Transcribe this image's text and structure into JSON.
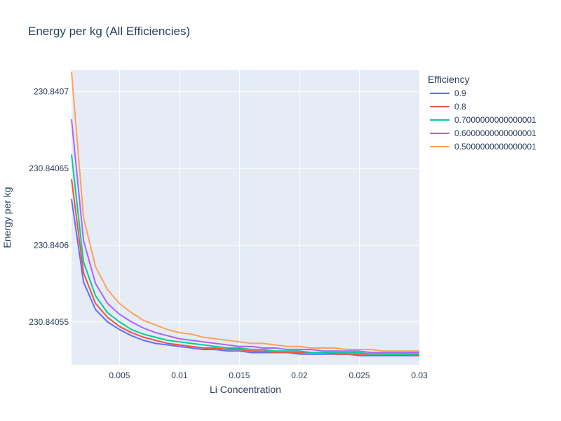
{
  "chart_data": {
    "type": "line",
    "title": "Energy per kg (All Efficiencies)",
    "xlabel": "Li Concentration",
    "ylabel": "Energy per kg",
    "xlim": [
      0.001,
      0.03
    ],
    "ylim": [
      230.840522,
      230.840714
    ],
    "x_ticks": [
      0.005,
      0.01,
      0.015,
      0.02,
      0.025,
      0.03
    ],
    "x_tick_labels": [
      "0.005",
      "0.01",
      "0.015",
      "0.02",
      "0.025",
      "0.03"
    ],
    "y_ticks": [
      230.84055,
      230.8406,
      230.84065,
      230.8407
    ],
    "y_tick_labels": [
      "230.84055",
      "230.8406",
      "230.84065",
      "230.8407"
    ],
    "grid": true,
    "plot_bg": "#E5ECF6",
    "legend_title": "Efficiency",
    "legend_position": "right",
    "x": [
      0.001,
      0.002,
      0.003,
      0.004,
      0.005,
      0.006,
      0.007,
      0.008,
      0.009,
      0.01,
      0.011,
      0.012,
      0.013,
      0.014,
      0.015,
      0.016,
      0.017,
      0.018,
      0.019,
      0.02,
      0.021,
      0.022,
      0.023,
      0.024,
      0.025,
      0.026,
      0.027,
      0.028,
      0.029,
      0.03
    ],
    "series": [
      {
        "name": "0.9",
        "color": "#636EFA",
        "values": [
          230.84063,
          230.840576,
          230.840558,
          230.84055,
          230.840545,
          230.840541,
          230.840538,
          230.840536,
          230.840535,
          230.840534,
          230.840533,
          230.840532,
          230.840532,
          230.840531,
          230.840531,
          230.84053,
          230.84053,
          230.84053,
          230.84053,
          230.840529,
          230.840529,
          230.840529,
          230.840529,
          230.840529,
          230.840528,
          230.840528,
          230.840528,
          230.840528,
          230.840528,
          230.840528
        ]
      },
      {
        "name": "0.8",
        "color": "#EF553B",
        "values": [
          230.840643,
          230.840582,
          230.840562,
          230.840553,
          230.840547,
          230.840543,
          230.84054,
          230.840538,
          230.840536,
          230.840535,
          230.840534,
          230.840533,
          230.840533,
          230.840532,
          230.840532,
          230.840531,
          230.840531,
          230.84053,
          230.84053,
          230.84053,
          230.84053,
          230.84053,
          230.840529,
          230.840529,
          230.840529,
          230.840529,
          230.840529,
          230.840529,
          230.840529,
          230.840528
        ]
      },
      {
        "name": "0.7000000000000001",
        "color": "#00CC96",
        "values": [
          230.840659,
          230.840589,
          230.840567,
          230.840556,
          230.84055,
          230.840545,
          230.840542,
          230.84054,
          230.840538,
          230.840537,
          230.840536,
          230.840535,
          230.840534,
          230.840533,
          230.840533,
          230.840532,
          230.840532,
          230.840531,
          230.840531,
          230.840531,
          230.84053,
          230.84053,
          230.84053,
          230.84053,
          230.84053,
          230.840529,
          230.840529,
          230.840529,
          230.840529,
          230.840529
        ]
      },
      {
        "name": "0.6000000000000001",
        "color": "#AB63FA",
        "values": [
          230.840682,
          230.840603,
          230.840575,
          230.840562,
          230.840555,
          230.84055,
          230.840546,
          230.840543,
          230.840541,
          230.840539,
          230.840538,
          230.840537,
          230.840536,
          230.840535,
          230.840534,
          230.840534,
          230.840533,
          230.840533,
          230.840532,
          230.840532,
          230.840532,
          230.840531,
          230.840531,
          230.840531,
          230.840531,
          230.84053,
          230.84053,
          230.84053,
          230.84053,
          230.84053
        ]
      },
      {
        "name": "0.5000000000000001",
        "color": "#FFA15A",
        "values": [
          230.840713,
          230.840618,
          230.840586,
          230.840571,
          230.840562,
          230.840556,
          230.840551,
          230.840548,
          230.840545,
          230.840543,
          230.840542,
          230.84054,
          230.840539,
          230.840538,
          230.840537,
          230.840536,
          230.840536,
          230.840535,
          230.840534,
          230.840534,
          230.840533,
          230.840533,
          230.840533,
          230.840532,
          230.840532,
          230.840532,
          230.840531,
          230.840531,
          230.840531,
          230.840531
        ]
      }
    ]
  }
}
